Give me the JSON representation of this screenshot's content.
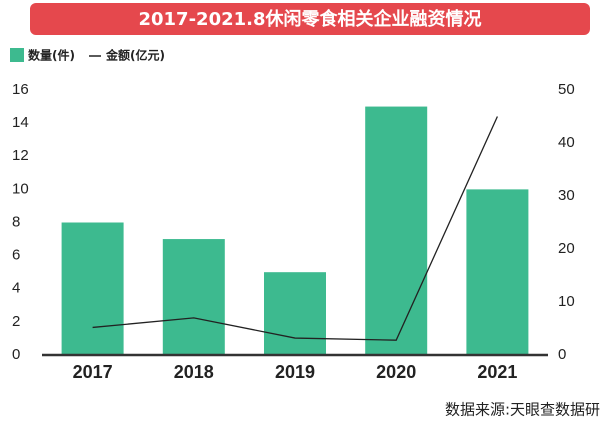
{
  "chart_data": {
    "type": "bar",
    "title": "2017-2021.8休闲零食相关企业融资情况",
    "source": "数据来源:天眼查数据研",
    "categories": [
      "2017",
      "2018",
      "2019",
      "2020",
      "2021"
    ],
    "series": [
      {
        "name": "数量(件)",
        "type": "bar",
        "color": "#3dba8f",
        "values": [
          8,
          7,
          5,
          15,
          10
        ]
      },
      {
        "name": "金额(亿元)",
        "type": "line",
        "axis": "y2",
        "color": "#222222",
        "values": [
          5.2,
          7,
          3.2,
          2.8,
          45
        ]
      }
    ],
    "ylim": [
      0,
      16
    ],
    "yticks": [
      0,
      2,
      4,
      6,
      8,
      10,
      12,
      14,
      16
    ],
    "y2lim": [
      0,
      50
    ],
    "y2ticks": [
      0,
      10,
      20,
      30,
      40,
      50
    ]
  }
}
